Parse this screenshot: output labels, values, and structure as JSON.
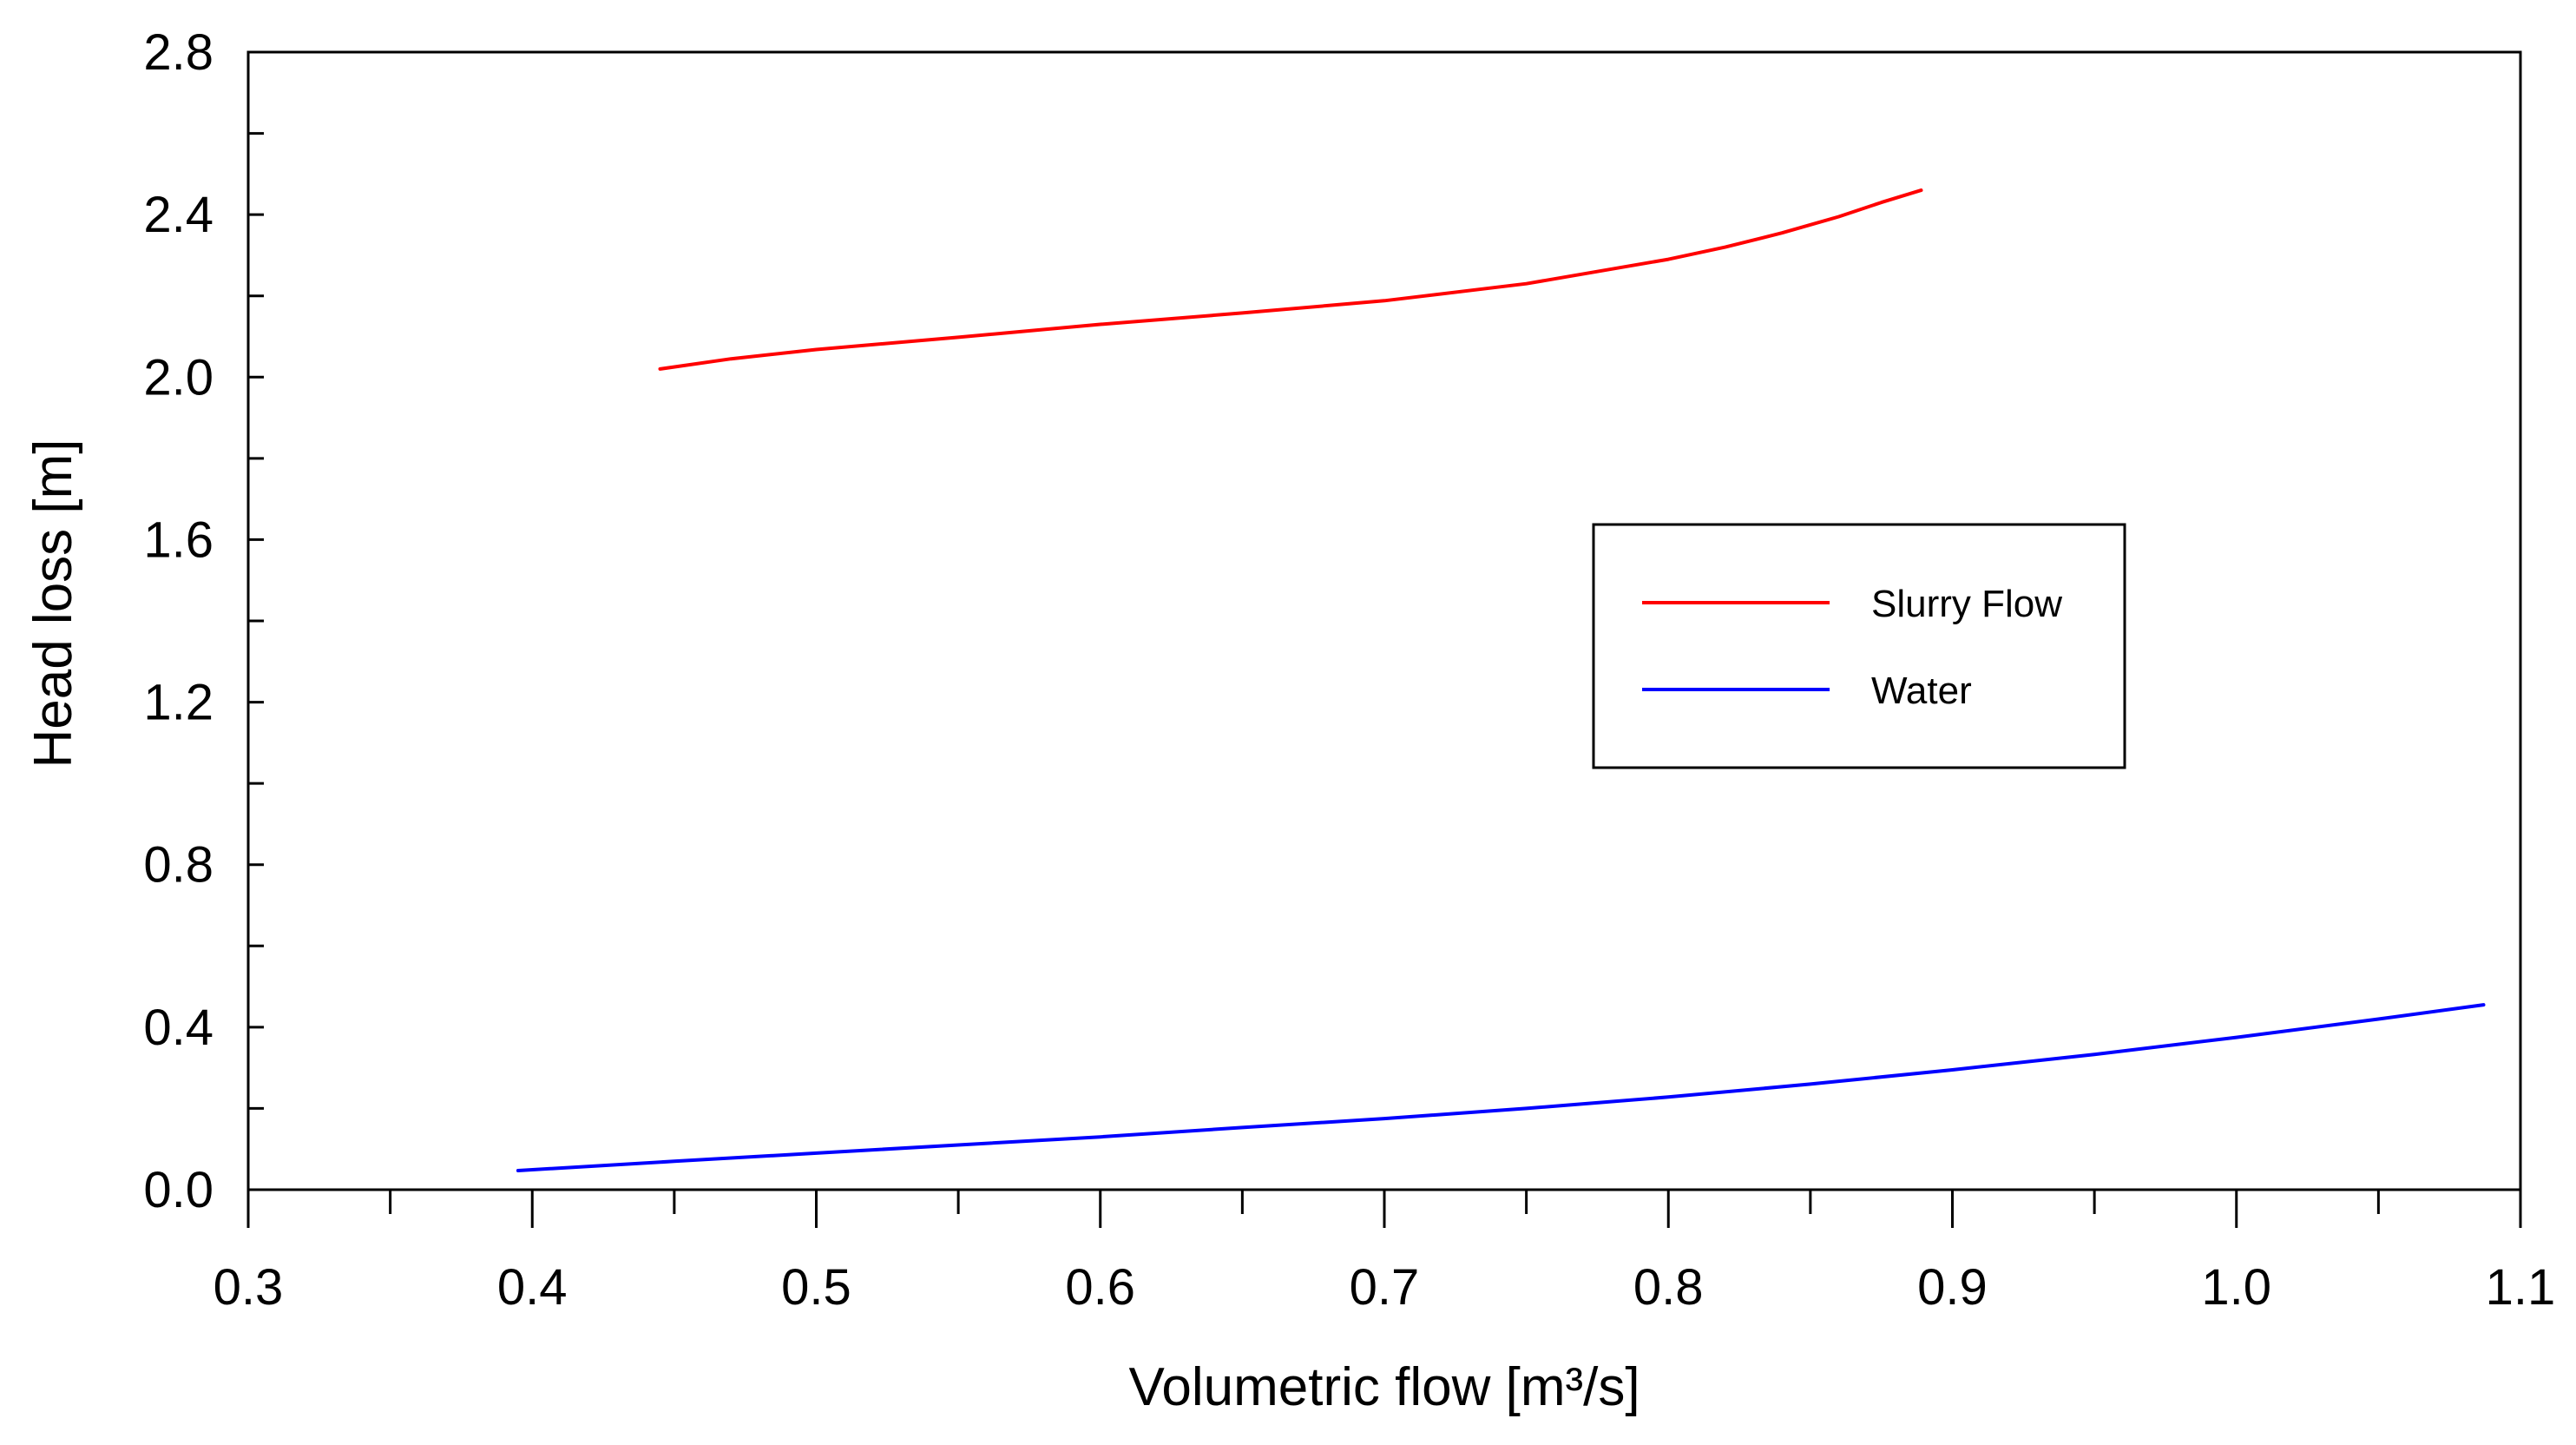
{
  "chart_data": {
    "type": "line",
    "title": "",
    "xlabel": "Volumetric flow [m³/s]",
    "ylabel": "Head loss [m]",
    "xlim": [
      0.3,
      1.1
    ],
    "ylim": [
      0.0,
      2.8
    ],
    "x_ticks": [
      0.3,
      0.4,
      0.5,
      0.6,
      0.7,
      0.8,
      0.9,
      1.0,
      1.1
    ],
    "x_tick_labels": [
      "0.3",
      "0.4",
      "0.5",
      "0.6",
      "0.7",
      "0.8",
      "0.9",
      "1.0",
      "1.1"
    ],
    "x_minor_ticks": [
      0.35,
      0.45,
      0.55,
      0.65,
      0.75,
      0.85,
      0.95,
      1.05
    ],
    "y_ticks": [
      0.0,
      0.4,
      0.8,
      1.2,
      1.6,
      2.0,
      2.4,
      2.8
    ],
    "y_tick_labels": [
      "0.0",
      "0.4",
      "0.8",
      "1.2",
      "1.6",
      "2.0",
      "2.4",
      "2.8"
    ],
    "y_minor_ticks": [
      0.2,
      0.6,
      1.0,
      1.4,
      1.8,
      2.2,
      2.6
    ],
    "grid": false,
    "legend_position": "center-right",
    "series": [
      {
        "name": "Slurry Flow",
        "color": "#ff0000",
        "x": [
          0.445,
          0.47,
          0.5,
          0.55,
          0.6,
          0.65,
          0.7,
          0.75,
          0.8,
          0.82,
          0.84,
          0.86,
          0.875,
          0.889
        ],
        "y": [
          2.02,
          2.045,
          2.068,
          2.098,
          2.13,
          2.158,
          2.188,
          2.23,
          2.29,
          2.32,
          2.355,
          2.395,
          2.43,
          2.46
        ]
      },
      {
        "name": "Water",
        "color": "#0000ff",
        "x": [
          0.395,
          0.45,
          0.5,
          0.55,
          0.6,
          0.65,
          0.7,
          0.75,
          0.8,
          0.85,
          0.9,
          0.95,
          1.0,
          1.05,
          1.087
        ],
        "y": [
          0.047,
          0.07,
          0.09,
          0.11,
          0.13,
          0.153,
          0.175,
          0.2,
          0.228,
          0.26,
          0.295,
          0.333,
          0.375,
          0.42,
          0.455
        ]
      }
    ]
  }
}
